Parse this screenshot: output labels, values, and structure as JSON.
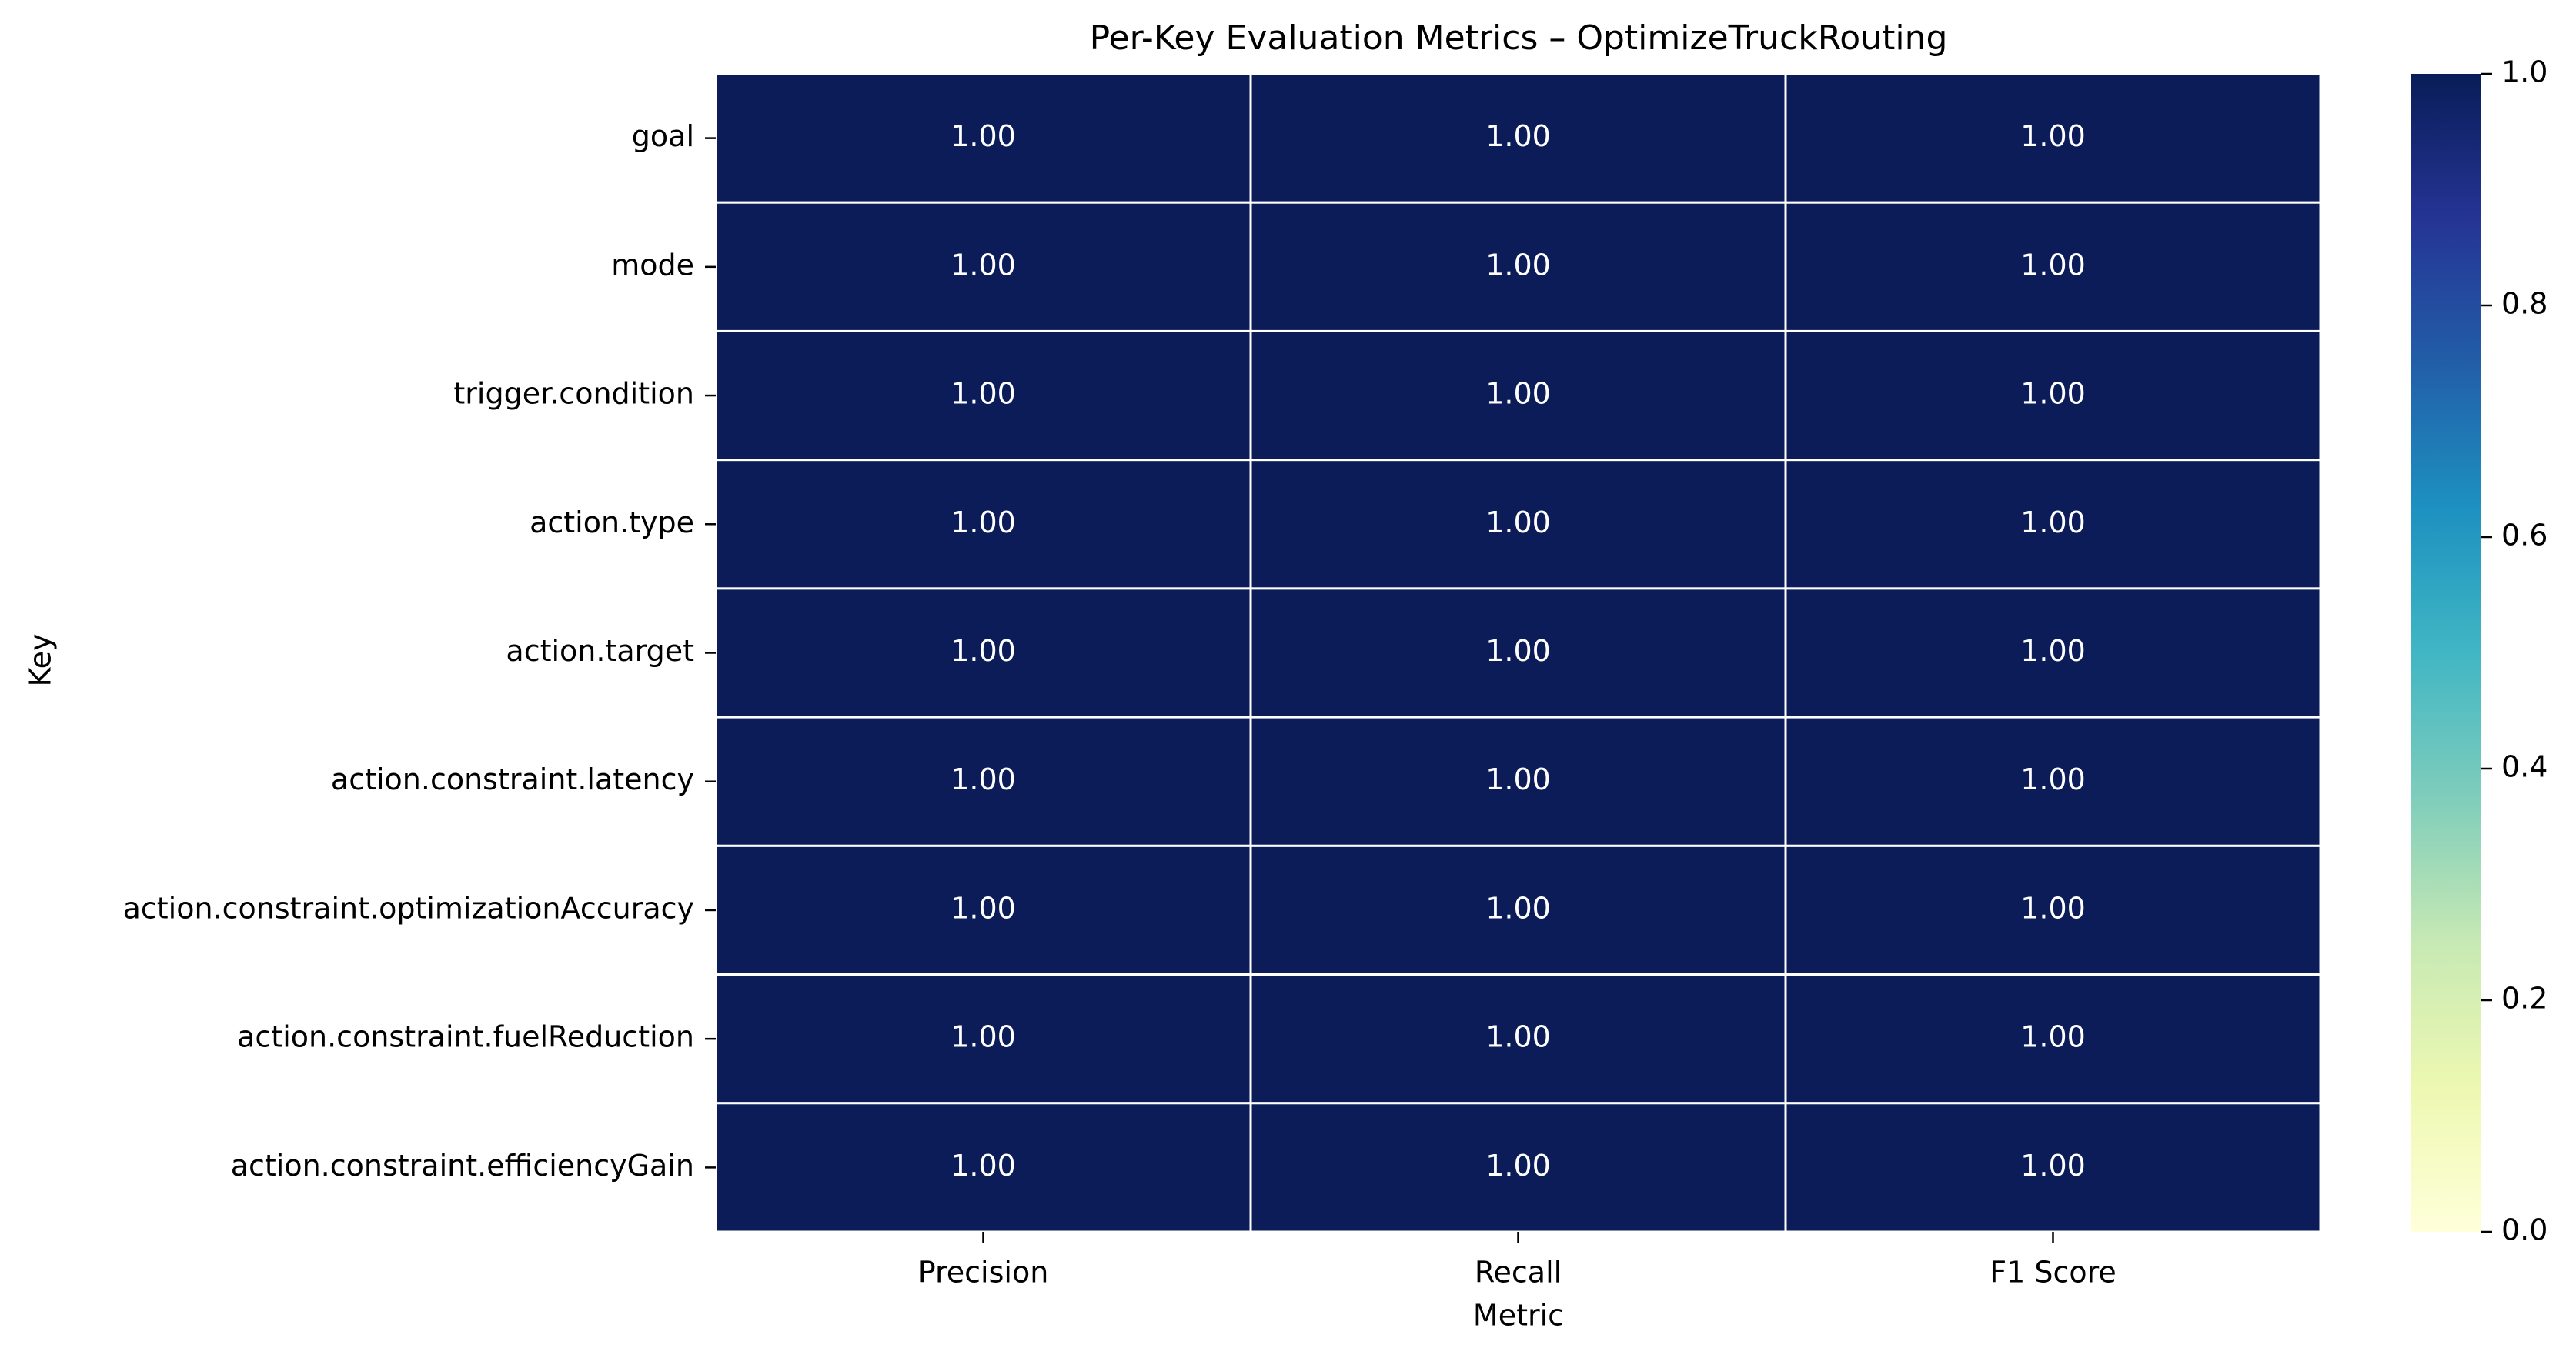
{
  "chart_data": {
    "type": "heatmap",
    "title": "Per-Key Evaluation Metrics – OptimizeTruckRouting",
    "xlabel": "Metric",
    "ylabel": "Key",
    "columns": [
      "Precision",
      "Recall",
      "F1 Score"
    ],
    "rows": [
      "goal",
      "mode",
      "trigger.condition",
      "action.type",
      "action.target",
      "action.constraint.latency",
      "action.constraint.optimizationAccuracy",
      "action.constraint.fuelReduction",
      "action.constraint.efficiencyGain"
    ],
    "values": [
      [
        1.0,
        1.0,
        1.0
      ],
      [
        1.0,
        1.0,
        1.0
      ],
      [
        1.0,
        1.0,
        1.0
      ],
      [
        1.0,
        1.0,
        1.0
      ],
      [
        1.0,
        1.0,
        1.0
      ],
      [
        1.0,
        1.0,
        1.0
      ],
      [
        1.0,
        1.0,
        1.0
      ],
      [
        1.0,
        1.0,
        1.0
      ],
      [
        1.0,
        1.0,
        1.0
      ]
    ],
    "cell_labels": [
      [
        "1.00",
        "1.00",
        "1.00"
      ],
      [
        "1.00",
        "1.00",
        "1.00"
      ],
      [
        "1.00",
        "1.00",
        "1.00"
      ],
      [
        "1.00",
        "1.00",
        "1.00"
      ],
      [
        "1.00",
        "1.00",
        "1.00"
      ],
      [
        "1.00",
        "1.00",
        "1.00"
      ],
      [
        "1.00",
        "1.00",
        "1.00"
      ],
      [
        "1.00",
        "1.00",
        "1.00"
      ],
      [
        "1.00",
        "1.00",
        "1.00"
      ]
    ],
    "colorbar": {
      "range": [
        0,
        1
      ],
      "ticks": [
        "0.0",
        "0.2",
        "0.4",
        "0.6",
        "0.8",
        "1.0"
      ],
      "colormap": "YlGnBu",
      "stops": [
        "#ffffd9",
        "#edf8b1",
        "#c7e9b4",
        "#7fcdbb",
        "#41b6c4",
        "#1d91c0",
        "#225ea8",
        "#253494",
        "#081d58"
      ]
    },
    "cell_color": "#0b1c59",
    "cell_border_color": "#ffffff",
    "annotation_color": "#ffffff",
    "grid": false,
    "legend": "colorbar-right"
  }
}
